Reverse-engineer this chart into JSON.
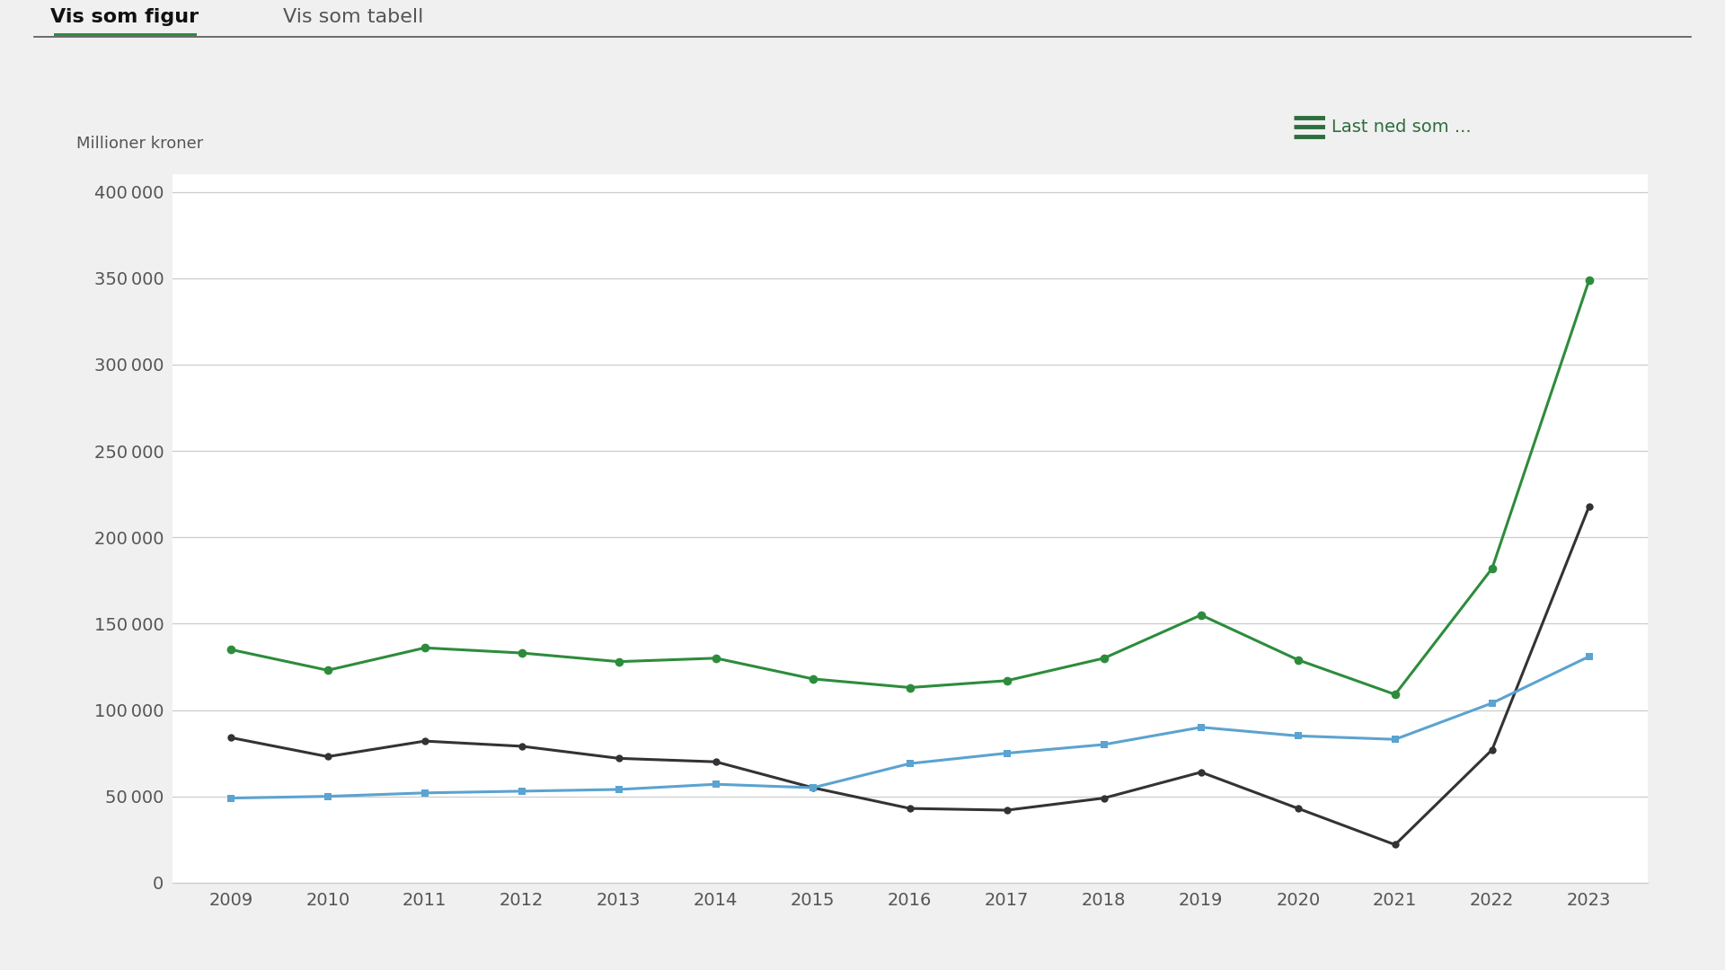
{
  "years": [
    2009,
    2010,
    2011,
    2012,
    2013,
    2014,
    2015,
    2016,
    2017,
    2018,
    2019,
    2020,
    2021,
    2022,
    2023
  ],
  "green_line": [
    135000,
    123000,
    136000,
    133000,
    128000,
    130000,
    118000,
    113000,
    117000,
    130000,
    155000,
    129000,
    109000,
    182000,
    349000
  ],
  "black_line": [
    84000,
    73000,
    82000,
    79000,
    72000,
    70000,
    55000,
    43000,
    42000,
    49000,
    64000,
    43000,
    22000,
    77000,
    218000
  ],
  "blue_line": [
    49000,
    50000,
    52000,
    53000,
    54000,
    57000,
    55000,
    69000,
    75000,
    80000,
    90000,
    85000,
    83000,
    104000,
    131000
  ],
  "ylabel": "Millioner kroner",
  "ylim": [
    0,
    410000
  ],
  "yticks": [
    0,
    50000,
    100000,
    150000,
    200000,
    250000,
    300000,
    350000,
    400000
  ],
  "background_color": "#f0f0f0",
  "plot_bg_color": "#ffffff",
  "green_color": "#2d8c3c",
  "black_color": "#333333",
  "blue_color": "#5ba3d0",
  "header_line_color": "#555555",
  "grid_color": "#cccccc",
  "tab_active_text": "Vis som figur",
  "tab_inactive_text": "Vis som tabell",
  "tab_underline_color": "#2d8c3c",
  "download_text": "Last ned som ...",
  "download_icon_color": "#2d6e3e",
  "tick_color": "#555555"
}
